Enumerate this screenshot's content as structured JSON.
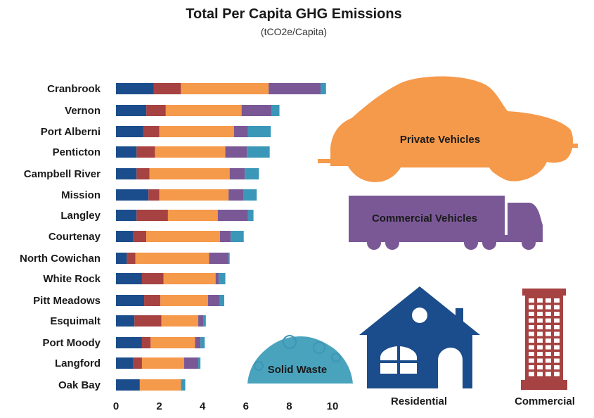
{
  "chart_data": {
    "type": "bar",
    "orientation": "horizontal",
    "stacked": true,
    "title": "Total Per Capita GHG Emissions",
    "subtitle": "(tCO2e/Capita)",
    "xlabel": "",
    "ylabel": "",
    "xlim": [
      0,
      10
    ],
    "x_ticks": [
      "0",
      "2",
      "4",
      "6",
      "8",
      "10"
    ],
    "grid": false,
    "legend": "pictorial",
    "highlight_category": "North Cowichan",
    "highlight_color": "#4a9a2a",
    "categories": [
      "Cranbrook",
      "Vernon",
      "Port Alberni",
      "Penticton",
      "Campbell River",
      "Mission",
      "Langley",
      "Courtenay",
      "North Cowichan",
      "White Rock",
      "Pitt Meadows",
      "Esquimalt",
      "Port Moody",
      "Langford",
      "Oak Bay"
    ],
    "series": [
      {
        "name": "Residential",
        "color": "#1b4d8c",
        "values": [
          1.75,
          1.4,
          1.25,
          0.95,
          0.95,
          1.5,
          0.95,
          0.8,
          0.5,
          1.2,
          1.3,
          0.85,
          1.2,
          0.8,
          1.1
        ]
      },
      {
        "name": "Commercial",
        "color": "#a64242",
        "values": [
          1.25,
          0.9,
          0.75,
          0.85,
          0.6,
          0.5,
          1.45,
          0.6,
          0.4,
          1.0,
          0.75,
          1.25,
          0.4,
          0.4,
          0.0
        ]
      },
      {
        "name": "Private Vehicles",
        "color": "#f5994a",
        "values": [
          4.05,
          3.5,
          3.45,
          3.25,
          3.7,
          3.2,
          2.3,
          3.4,
          3.4,
          2.4,
          2.2,
          1.7,
          2.05,
          1.95,
          1.9
        ]
      },
      {
        "name": "Commercial Vehicles",
        "color": "#7a5896",
        "values": [
          2.4,
          1.4,
          0.65,
          1.0,
          0.7,
          0.7,
          1.4,
          0.5,
          0.9,
          0.15,
          0.55,
          0.25,
          0.25,
          0.65,
          0.0
        ]
      },
      {
        "name": "Solid Waste",
        "color": "#3b97b8",
        "values": [
          0.25,
          0.35,
          1.05,
          1.05,
          0.65,
          0.6,
          0.25,
          0.6,
          0.05,
          0.3,
          0.2,
          0.1,
          0.2,
          0.1,
          0.2
        ]
      }
    ]
  },
  "icons": {
    "private_vehicles": {
      "label": "Private Vehicles",
      "icon": "car-icon"
    },
    "commercial_vehicles": {
      "label": "Commercial Vehicles",
      "icon": "truck-icon"
    },
    "solid_waste": {
      "label": "Solid Waste",
      "icon": "trash-pile-icon"
    },
    "residential": {
      "label": "Residential",
      "icon": "house-icon"
    },
    "commercial": {
      "label": "Commercial",
      "icon": "office-building-icon"
    }
  }
}
